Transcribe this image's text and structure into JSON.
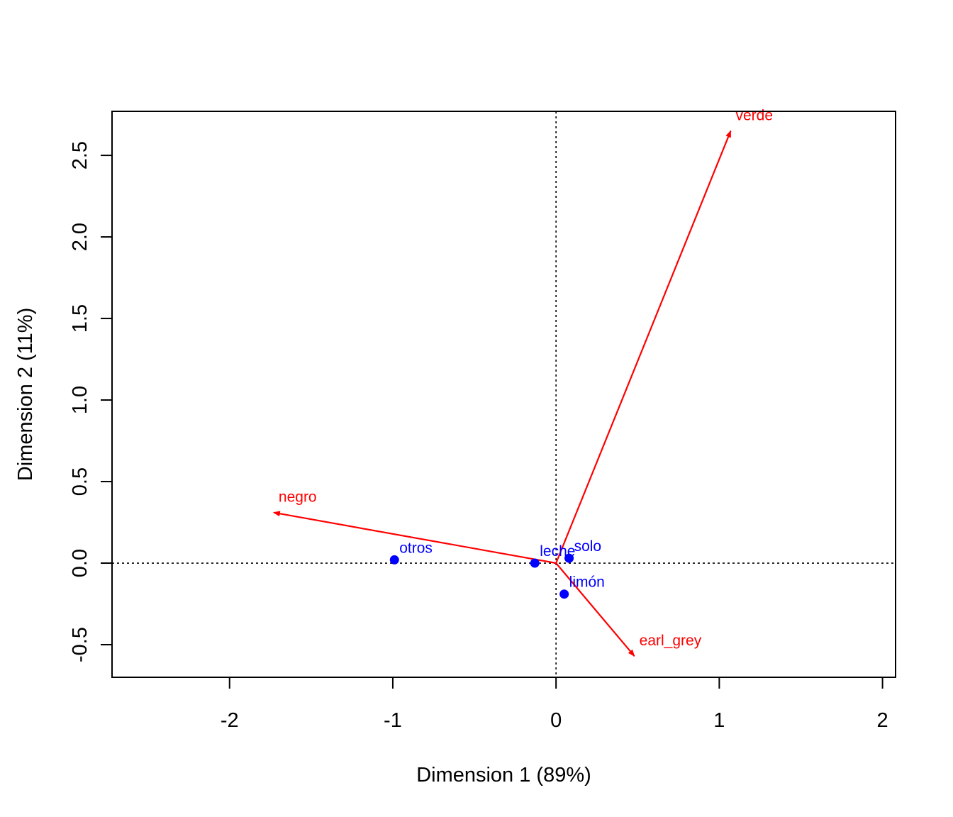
{
  "chart_data": {
    "type": "scatter",
    "title": "",
    "xlabel": "Dimension 1 (89%)",
    "ylabel": "Dimension 2 (11%)",
    "xlim": [
      -2.72,
      2.08
    ],
    "ylim": [
      -0.7,
      2.77
    ],
    "xticks": [
      -2,
      -1,
      0,
      1,
      2
    ],
    "xtick_labels": [
      "-2",
      "-1",
      "0",
      "1",
      "2"
    ],
    "yticks": [
      -0.5,
      0.0,
      0.5,
      1.0,
      1.5,
      2.0,
      2.5
    ],
    "ytick_labels": [
      "-0.5",
      "0.0",
      "0.5",
      "1.0",
      "1.5",
      "2.0",
      "2.5"
    ],
    "reference_lines": {
      "x": 0,
      "y": 0,
      "style": "dotted"
    },
    "grid": false,
    "points": {
      "name": "",
      "color": "#0000ff",
      "items": [
        {
          "label": "otros",
          "x": -0.99,
          "y": 0.02
        },
        {
          "label": "leche",
          "x": -0.13,
          "y": 0.0
        },
        {
          "label": "solo",
          "x": 0.08,
          "y": 0.03
        },
        {
          "label": "limón",
          "x": 0.05,
          "y": -0.19
        }
      ]
    },
    "arrows": {
      "name": "",
      "color": "#ff0000",
      "items": [
        {
          "label": "negro",
          "x": -1.73,
          "y": 0.31
        },
        {
          "label": "verde",
          "x": 1.07,
          "y": 2.65
        },
        {
          "label": "earl_grey",
          "x": 0.48,
          "y": -0.57
        }
      ]
    }
  }
}
